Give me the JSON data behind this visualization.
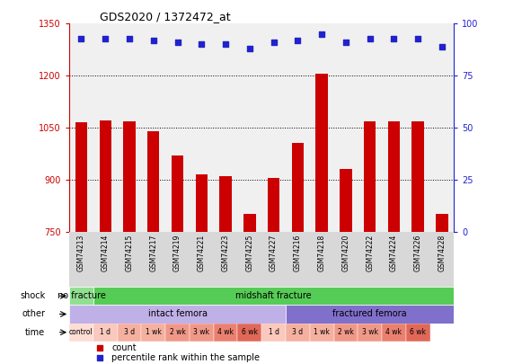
{
  "title": "GDS2020 / 1372472_at",
  "samples": [
    "GSM74213",
    "GSM74214",
    "GSM74215",
    "GSM74217",
    "GSM74219",
    "GSM74221",
    "GSM74223",
    "GSM74225",
    "GSM74227",
    "GSM74216",
    "GSM74218",
    "GSM74220",
    "GSM74222",
    "GSM74224",
    "GSM74226",
    "GSM74228"
  ],
  "counts": [
    1065,
    1072,
    1068,
    1040,
    970,
    915,
    910,
    800,
    905,
    1005,
    1205,
    930,
    1068,
    1068,
    1067,
    800
  ],
  "percentiles": [
    93,
    93,
    93,
    92,
    91,
    90,
    90,
    88,
    91,
    92,
    95,
    91,
    93,
    93,
    93,
    89
  ],
  "ylim_left": [
    750,
    1350
  ],
  "ylim_right": [
    0,
    100
  ],
  "yticks_left": [
    750,
    900,
    1050,
    1200,
    1350
  ],
  "yticks_right": [
    0,
    25,
    50,
    75,
    100
  ],
  "bar_color": "#cc0000",
  "dot_color": "#2222cc",
  "shock_labels": [
    {
      "text": "no fracture",
      "start": 0,
      "end": 1,
      "color": "#90e090"
    },
    {
      "text": "midshaft fracture",
      "start": 1,
      "end": 16,
      "color": "#55cc55"
    }
  ],
  "other_labels": [
    {
      "text": "intact femora",
      "start": 0,
      "end": 9,
      "color": "#c0b0e8"
    },
    {
      "text": "fractured femora",
      "start": 9,
      "end": 16,
      "color": "#8070cc"
    }
  ],
  "time_labels": [
    {
      "text": "control",
      "start": 0,
      "end": 1,
      "color": "#fdddd5"
    },
    {
      "text": "1 d",
      "start": 1,
      "end": 2,
      "color": "#fac8bc"
    },
    {
      "text": "3 d",
      "start": 2,
      "end": 3,
      "color": "#f5b0a0"
    },
    {
      "text": "1 wk",
      "start": 3,
      "end": 4,
      "color": "#f5b0a0"
    },
    {
      "text": "2 wk",
      "start": 4,
      "end": 5,
      "color": "#f09888"
    },
    {
      "text": "3 wk",
      "start": 5,
      "end": 6,
      "color": "#f09888"
    },
    {
      "text": "4 wk",
      "start": 6,
      "end": 7,
      "color": "#eb8070"
    },
    {
      "text": "6 wk",
      "start": 7,
      "end": 8,
      "color": "#e06858"
    },
    {
      "text": "1 d",
      "start": 8,
      "end": 9,
      "color": "#fac8bc"
    },
    {
      "text": "3 d",
      "start": 9,
      "end": 10,
      "color": "#f5b0a0"
    },
    {
      "text": "1 wk",
      "start": 10,
      "end": 11,
      "color": "#f5b0a0"
    },
    {
      "text": "2 wk",
      "start": 11,
      "end": 12,
      "color": "#f09888"
    },
    {
      "text": "3 wk",
      "start": 12,
      "end": 13,
      "color": "#f09888"
    },
    {
      "text": "4 wk",
      "start": 13,
      "end": 14,
      "color": "#eb8070"
    },
    {
      "text": "6 wk",
      "start": 14,
      "end": 15,
      "color": "#e06858"
    }
  ],
  "sample_bg": "#d8d8d8",
  "chart_bg": "#f0f0f0",
  "grid_color": "#000000",
  "left_axis_color": "#cc0000",
  "right_axis_color": "#2222cc"
}
